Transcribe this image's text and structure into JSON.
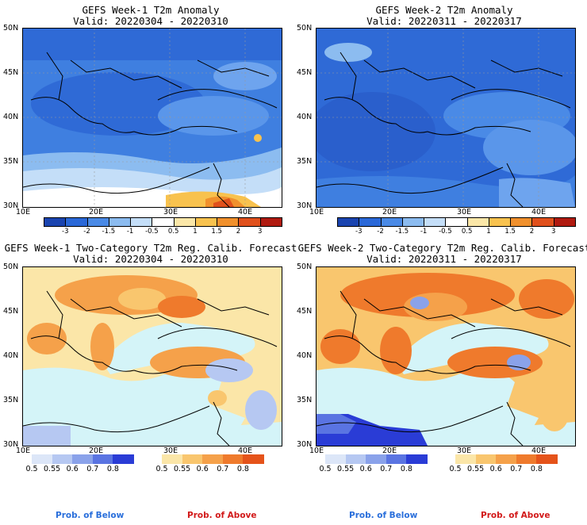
{
  "panels": [
    {
      "title": "GEFS Week-1 T2m Anomaly",
      "valid": "Valid: 20220304 - 20220310"
    },
    {
      "title": "GEFS Week-2 T2m Anomaly",
      "valid": "Valid: 20220311 - 20220317"
    },
    {
      "title": "GEFS Week-1 Two-Category T2m Reg. Calib. Forecast",
      "valid": "Valid: 20220304 - 20220310"
    },
    {
      "title": "GEFS Week-2 Two-Category T2m Reg. Calib. Forecast",
      "valid": "Valid: 20220311 - 20220317"
    }
  ],
  "axes": {
    "lat_labels": [
      "50N",
      "45N",
      "40N",
      "35N",
      "30N"
    ],
    "lon_labels": [
      "10E",
      "20E",
      "30E",
      "40E"
    ]
  },
  "anomaly_colorbar": {
    "ticks": [
      "-3",
      "-2",
      "-1.5",
      "-1",
      "-0.5",
      "0.5",
      "1",
      "1.5",
      "2",
      "3"
    ],
    "colors": [
      "#1a44b0",
      "#2a68d8",
      "#4a8ae6",
      "#8cbcf0",
      "#c4def8",
      "#ffffff",
      "#fbe7a8",
      "#f8c24e",
      "#f0902c",
      "#e0501c",
      "#b01a10"
    ]
  },
  "prob_colorbar": {
    "below_ticks": [
      "0.5",
      "0.55",
      "0.6",
      "0.7",
      "0.8"
    ],
    "above_ticks": [
      "0.5",
      "0.55",
      "0.6",
      "0.7",
      "0.8"
    ],
    "below_colors": [
      "#dce6f8",
      "#b6c8f2",
      "#8aa2ea",
      "#5a74e2",
      "#2a3cd6"
    ],
    "above_colors": [
      "#fbe6a8",
      "#f9c66e",
      "#f5a14a",
      "#ef7a2c",
      "#e5531a"
    ],
    "below_label": "Prob. of Below",
    "above_label": "Prob. of Above",
    "below_label_color": "#2a6fdb",
    "above_label_color": "#d21a1a"
  },
  "colors": {
    "sea_prob": "#d4f4f8",
    "anom_base": "#3f7fe0"
  }
}
